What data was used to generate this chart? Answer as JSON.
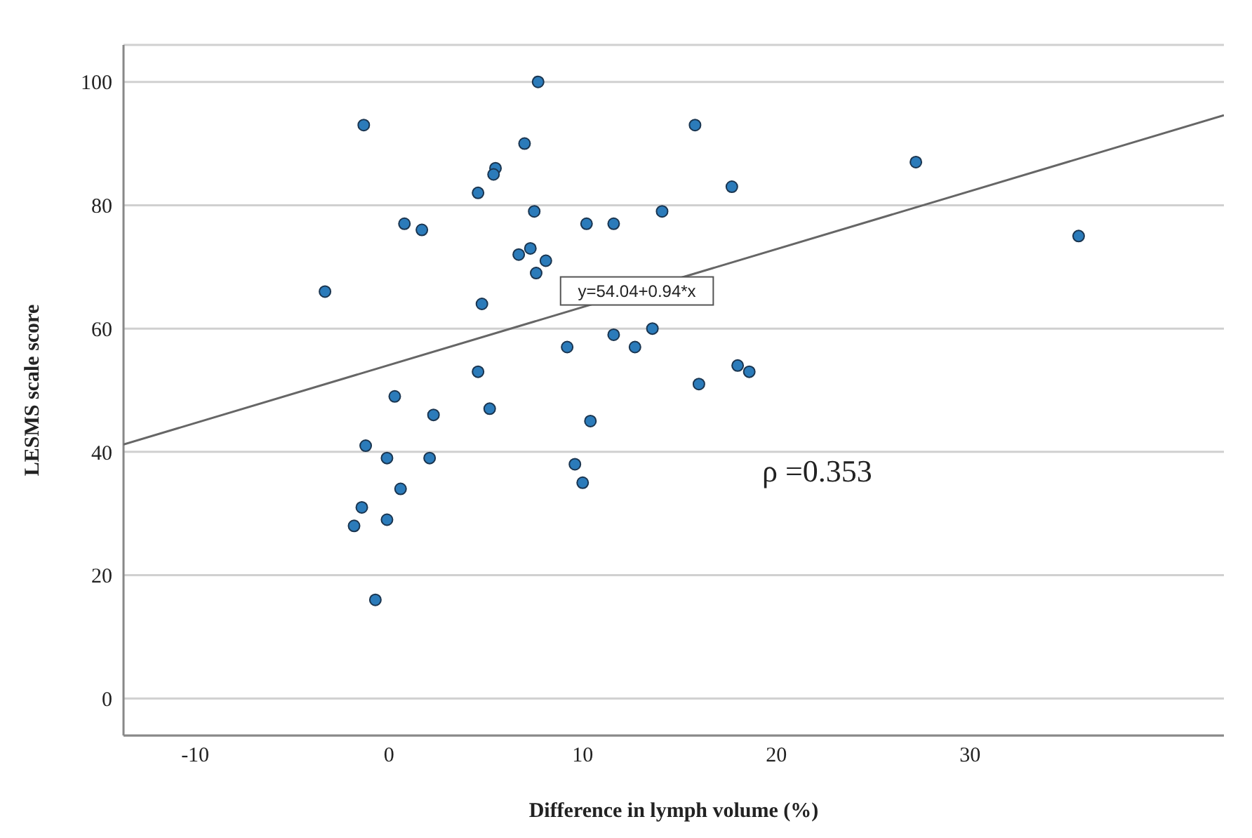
{
  "chart_data": {
    "type": "scatter",
    "xlabel": "Difference in lymph volume (%)",
    "ylabel": "LESMS scale score",
    "xlim": [
      -13.7,
      43.1
    ],
    "ylim": [
      -6,
      106
    ],
    "xticks": [
      -10,
      0,
      10,
      20,
      30
    ],
    "yticks": [
      0,
      20,
      40,
      60,
      80,
      100
    ],
    "grid": "y",
    "legend": false,
    "marker": "circle",
    "series": [
      {
        "color": "#2b7bba",
        "x": [
          7.7,
          -1.3,
          15.8,
          7,
          5.5,
          5.4,
          4.6,
          7.5,
          14.1,
          0.8,
          1.7,
          10.2,
          11.6,
          7.3,
          6.7,
          8.1,
          7.6,
          -3.3,
          4.8,
          9.2,
          11.6,
          12.7,
          13.6,
          27.2,
          17.7,
          35.6,
          16,
          18,
          18.6,
          4.6,
          0.3,
          2.3,
          5.2,
          10.4,
          -1.2,
          -0.1,
          2.1,
          9.6,
          10,
          0.6,
          -1.4,
          -0.1,
          -1.8,
          -0.7
        ],
        "values": [
          100,
          93,
          93,
          90,
          86,
          85,
          82,
          79,
          79,
          77,
          76,
          77,
          77,
          73,
          72,
          71,
          69,
          66,
          64,
          57,
          59,
          57,
          60,
          87,
          83,
          75,
          51,
          54,
          53,
          53,
          49,
          46,
          47,
          45,
          41,
          39,
          39,
          38,
          35,
          34,
          31,
          29,
          28,
          16
        ]
      },
      {
        "type": "line",
        "color": "#666666",
        "marker": "none",
        "x": [
          -13.7,
          43.1
        ],
        "values": [
          41.2,
          94.6
        ]
      }
    ],
    "annotations": [
      {
        "text": "y=54.04+0.94*x",
        "x": 12.8,
        "y": 66.1
      },
      "ρ =0.353"
    ]
  }
}
